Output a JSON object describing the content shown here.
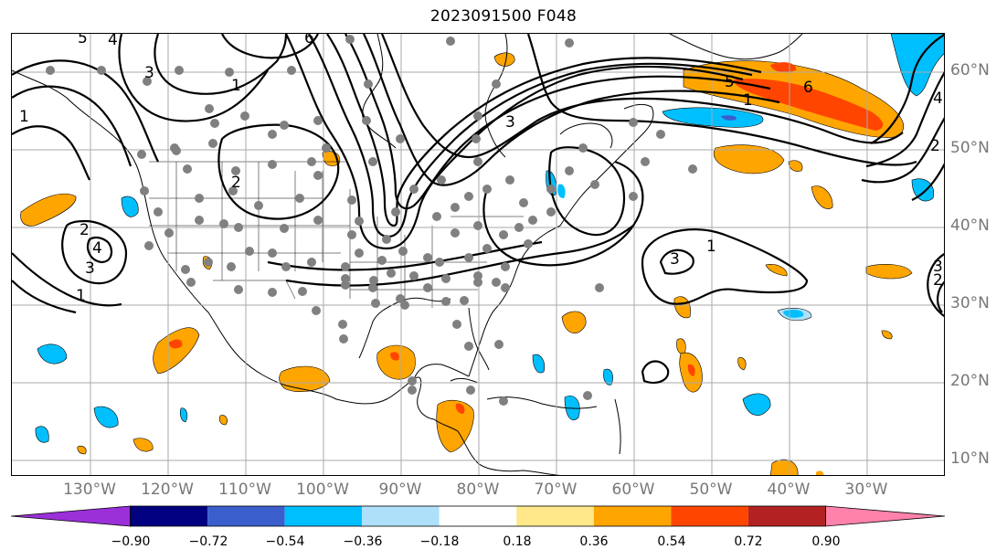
{
  "title": "2023091500 F048",
  "lat_labels": [
    {
      "text": "60°N",
      "lat": 60
    },
    {
      "text": "50°N",
      "lat": 50
    },
    {
      "text": "40°N",
      "lat": 40
    },
    {
      "text": "30°N",
      "lat": 30
    },
    {
      "text": "20°N",
      "lat": 20
    },
    {
      "text": "10°N",
      "lat": 10
    }
  ],
  "lon_labels": [
    {
      "text": "130°W",
      "lon": -130
    },
    {
      "text": "120°W",
      "lon": -120
    },
    {
      "text": "110°W",
      "lon": -110
    },
    {
      "text": "100°W",
      "lon": -100
    },
    {
      "text": "90°W",
      "lon": -90
    },
    {
      "text": "80°W",
      "lon": -80
    },
    {
      "text": "70°W",
      "lon": -70
    },
    {
      "text": "60°W",
      "lon": -60
    },
    {
      "text": "50°W",
      "lon": -50
    },
    {
      "text": "40°W",
      "lon": -40
    },
    {
      "text": "30°W",
      "lon": -30
    }
  ],
  "colorbar": {
    "bounds": [
      -0.9,
      -0.72,
      -0.54,
      -0.36,
      -0.18,
      0.18,
      0.36,
      0.54,
      0.72,
      0.9
    ],
    "tick_labels": [
      "−0.90",
      "−0.72",
      "−0.54",
      "−0.36",
      "−0.18",
      "0.18",
      "0.36",
      "0.54",
      "0.72",
      "0.90"
    ],
    "colors": [
      "#9b30d9",
      "#000080",
      "#3a5fcd",
      "#00bfff",
      "#aee0fa",
      "#ffffff",
      "#ffe88a",
      "#ffa500",
      "#ff4500",
      "#b22222",
      "#ff82ab"
    ],
    "extend": "both"
  },
  "contour_labels": [
    "5",
    "4",
    "3",
    "1",
    "2",
    "3",
    "4",
    "6",
    "1",
    "5",
    "6",
    "1",
    "2",
    "3",
    "3",
    "2",
    "1",
    "4",
    "3",
    "2",
    "1"
  ],
  "colors": {
    "contour": "#000000",
    "grid": "#aaaaaa",
    "coast": "#000000",
    "stations": "#808080",
    "axis_label": "#777777"
  }
}
